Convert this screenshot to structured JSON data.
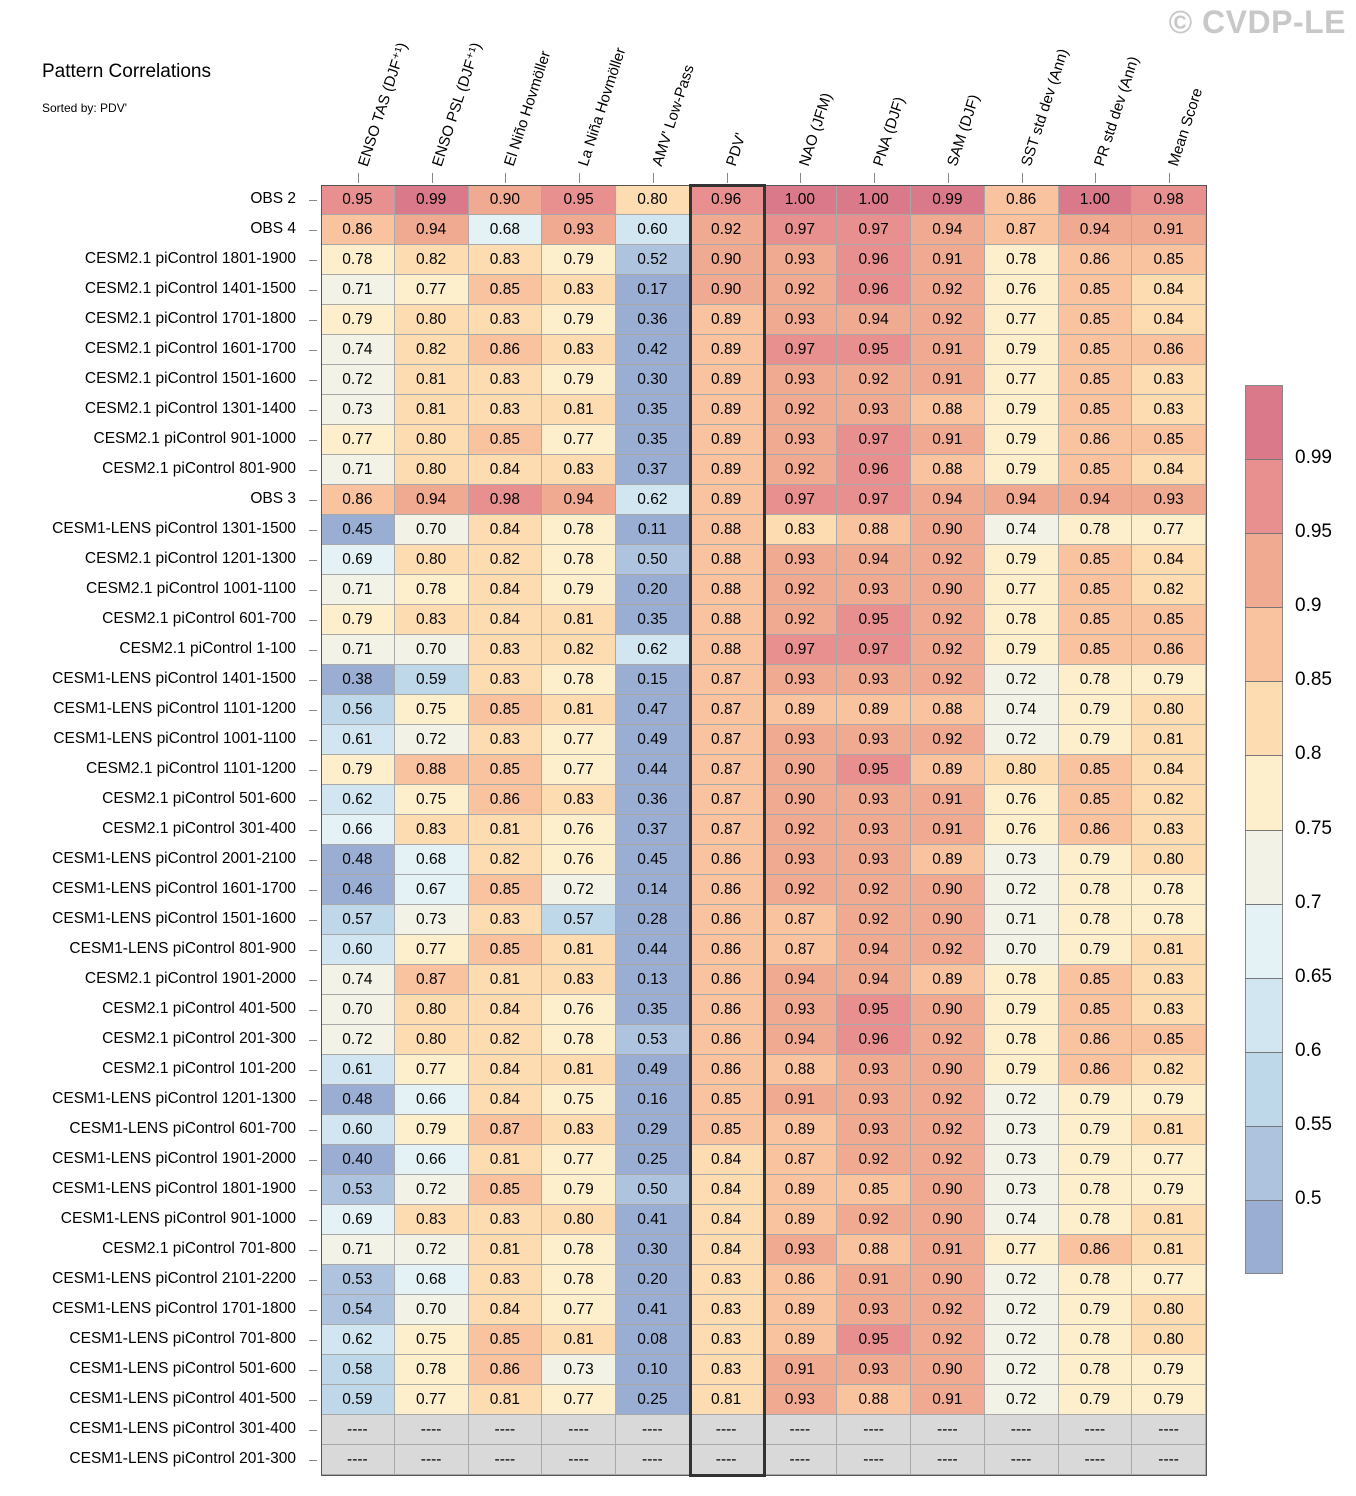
{
  "title": "Pattern Correlations",
  "subtitle": "Sorted by: PDV'",
  "watermark": "© CVDP-LE",
  "chart_data": {
    "type": "heatmap",
    "columns": [
      "ENSO TAS (DJF⁺¹)",
      "ENSO PSL (DJF⁺¹)",
      "El Niño Hovmöller",
      "La Niña Hovmöller",
      "AMV' Low-Pass",
      "PDV'",
      "NAO (JFM)",
      "PNA (DJF)",
      "SAM (DJF)",
      "SST std dev (Ann)",
      "PR std dev (Ann)",
      "Mean Score"
    ],
    "highlight_column": "PDV'",
    "rows": [
      {
        "label": "OBS 2",
        "values": [
          0.95,
          0.99,
          0.9,
          0.95,
          0.8,
          0.96,
          1.0,
          1.0,
          0.99,
          0.86,
          1.0,
          0.98
        ]
      },
      {
        "label": "OBS 4",
        "values": [
          0.86,
          0.94,
          0.68,
          0.93,
          0.6,
          0.92,
          0.97,
          0.97,
          0.94,
          0.87,
          0.94,
          0.91
        ]
      },
      {
        "label": "CESM2.1 piControl 1801-1900",
        "values": [
          0.78,
          0.82,
          0.83,
          0.79,
          0.52,
          0.9,
          0.93,
          0.96,
          0.91,
          0.78,
          0.86,
          0.85
        ]
      },
      {
        "label": "CESM2.1 piControl 1401-1500",
        "values": [
          0.71,
          0.77,
          0.85,
          0.83,
          0.17,
          0.9,
          0.92,
          0.96,
          0.92,
          0.76,
          0.85,
          0.84
        ]
      },
      {
        "label": "CESM2.1 piControl 1701-1800",
        "values": [
          0.79,
          0.8,
          0.83,
          0.79,
          0.36,
          0.89,
          0.93,
          0.94,
          0.92,
          0.77,
          0.85,
          0.84
        ]
      },
      {
        "label": "CESM2.1 piControl 1601-1700",
        "values": [
          0.74,
          0.82,
          0.86,
          0.83,
          0.42,
          0.89,
          0.97,
          0.95,
          0.91,
          0.79,
          0.85,
          0.86
        ]
      },
      {
        "label": "CESM2.1 piControl 1501-1600",
        "values": [
          0.72,
          0.81,
          0.83,
          0.79,
          0.3,
          0.89,
          0.93,
          0.92,
          0.91,
          0.77,
          0.85,
          0.83
        ]
      },
      {
        "label": "CESM2.1 piControl 1301-1400",
        "values": [
          0.73,
          0.81,
          0.83,
          0.81,
          0.35,
          0.89,
          0.92,
          0.93,
          0.88,
          0.79,
          0.85,
          0.83
        ]
      },
      {
        "label": "CESM2.1 piControl 901-1000",
        "values": [
          0.77,
          0.8,
          0.85,
          0.77,
          0.35,
          0.89,
          0.93,
          0.97,
          0.91,
          0.79,
          0.86,
          0.85
        ]
      },
      {
        "label": "CESM2.1 piControl 801-900",
        "values": [
          0.71,
          0.8,
          0.84,
          0.83,
          0.37,
          0.89,
          0.92,
          0.96,
          0.88,
          0.79,
          0.85,
          0.84
        ]
      },
      {
        "label": "OBS 3",
        "values": [
          0.86,
          0.94,
          0.98,
          0.94,
          0.62,
          0.89,
          0.97,
          0.97,
          0.94,
          0.94,
          0.94,
          0.93
        ]
      },
      {
        "label": "CESM1-LENS piControl 1301-1500",
        "values": [
          0.45,
          0.7,
          0.84,
          0.78,
          0.11,
          0.88,
          0.83,
          0.88,
          0.9,
          0.74,
          0.78,
          0.77
        ]
      },
      {
        "label": "CESM2.1 piControl 1201-1300",
        "values": [
          0.69,
          0.8,
          0.82,
          0.78,
          0.5,
          0.88,
          0.93,
          0.94,
          0.92,
          0.79,
          0.85,
          0.84
        ]
      },
      {
        "label": "CESM2.1 piControl 1001-1100",
        "values": [
          0.71,
          0.78,
          0.84,
          0.79,
          0.2,
          0.88,
          0.92,
          0.93,
          0.9,
          0.77,
          0.85,
          0.82
        ]
      },
      {
        "label": "CESM2.1 piControl 601-700",
        "values": [
          0.79,
          0.83,
          0.84,
          0.81,
          0.35,
          0.88,
          0.92,
          0.95,
          0.92,
          0.78,
          0.85,
          0.85
        ]
      },
      {
        "label": "CESM2.1 piControl 1-100",
        "values": [
          0.71,
          0.7,
          0.83,
          0.82,
          0.62,
          0.88,
          0.97,
          0.97,
          0.92,
          0.79,
          0.85,
          0.86
        ]
      },
      {
        "label": "CESM1-LENS piControl 1401-1500",
        "values": [
          0.38,
          0.59,
          0.83,
          0.78,
          0.15,
          0.87,
          0.93,
          0.93,
          0.92,
          0.72,
          0.78,
          0.79
        ]
      },
      {
        "label": "CESM1-LENS piControl 1101-1200",
        "values": [
          0.56,
          0.75,
          0.85,
          0.81,
          0.47,
          0.87,
          0.89,
          0.89,
          0.88,
          0.74,
          0.79,
          0.8
        ]
      },
      {
        "label": "CESM1-LENS piControl 1001-1100",
        "values": [
          0.61,
          0.72,
          0.83,
          0.77,
          0.49,
          0.87,
          0.93,
          0.93,
          0.92,
          0.72,
          0.79,
          0.81
        ]
      },
      {
        "label": "CESM2.1 piControl 1101-1200",
        "values": [
          0.79,
          0.88,
          0.85,
          0.77,
          0.44,
          0.87,
          0.9,
          0.95,
          0.89,
          0.8,
          0.85,
          0.84
        ]
      },
      {
        "label": "CESM2.1 piControl 501-600",
        "values": [
          0.62,
          0.75,
          0.86,
          0.83,
          0.36,
          0.87,
          0.9,
          0.93,
          0.91,
          0.76,
          0.85,
          0.82
        ]
      },
      {
        "label": "CESM2.1 piControl 301-400",
        "values": [
          0.66,
          0.83,
          0.81,
          0.76,
          0.37,
          0.87,
          0.92,
          0.93,
          0.91,
          0.76,
          0.86,
          0.83
        ]
      },
      {
        "label": "CESM1-LENS piControl 2001-2100",
        "values": [
          0.48,
          0.68,
          0.82,
          0.76,
          0.45,
          0.86,
          0.93,
          0.93,
          0.89,
          0.73,
          0.79,
          0.8
        ]
      },
      {
        "label": "CESM1-LENS piControl 1601-1700",
        "values": [
          0.46,
          0.67,
          0.85,
          0.72,
          0.14,
          0.86,
          0.92,
          0.92,
          0.9,
          0.72,
          0.78,
          0.78
        ]
      },
      {
        "label": "CESM1-LENS piControl 1501-1600",
        "values": [
          0.57,
          0.73,
          0.83,
          0.57,
          0.28,
          0.86,
          0.87,
          0.92,
          0.9,
          0.71,
          0.78,
          0.78
        ]
      },
      {
        "label": "CESM1-LENS piControl 801-900",
        "values": [
          0.6,
          0.77,
          0.85,
          0.81,
          0.44,
          0.86,
          0.87,
          0.94,
          0.92,
          0.7,
          0.79,
          0.81
        ]
      },
      {
        "label": "CESM2.1 piControl 1901-2000",
        "values": [
          0.74,
          0.87,
          0.81,
          0.83,
          0.13,
          0.86,
          0.94,
          0.94,
          0.89,
          0.78,
          0.85,
          0.83
        ]
      },
      {
        "label": "CESM2.1 piControl 401-500",
        "values": [
          0.7,
          0.8,
          0.84,
          0.76,
          0.35,
          0.86,
          0.93,
          0.95,
          0.9,
          0.79,
          0.85,
          0.83
        ]
      },
      {
        "label": "CESM2.1 piControl 201-300",
        "values": [
          0.72,
          0.8,
          0.82,
          0.78,
          0.53,
          0.86,
          0.94,
          0.96,
          0.92,
          0.78,
          0.86,
          0.85
        ]
      },
      {
        "label": "CESM2.1 piControl 101-200",
        "values": [
          0.61,
          0.77,
          0.84,
          0.81,
          0.49,
          0.86,
          0.88,
          0.93,
          0.9,
          0.79,
          0.86,
          0.82
        ]
      },
      {
        "label": "CESM1-LENS piControl 1201-1300",
        "values": [
          0.48,
          0.66,
          0.84,
          0.75,
          0.16,
          0.85,
          0.91,
          0.93,
          0.92,
          0.72,
          0.79,
          0.79
        ]
      },
      {
        "label": "CESM1-LENS piControl 601-700",
        "values": [
          0.6,
          0.79,
          0.87,
          0.83,
          0.29,
          0.85,
          0.89,
          0.93,
          0.92,
          0.73,
          0.79,
          0.81
        ]
      },
      {
        "label": "CESM1-LENS piControl 1901-2000",
        "values": [
          0.4,
          0.66,
          0.81,
          0.77,
          0.25,
          0.84,
          0.87,
          0.92,
          0.92,
          0.73,
          0.79,
          0.77
        ]
      },
      {
        "label": "CESM1-LENS piControl 1801-1900",
        "values": [
          0.53,
          0.72,
          0.85,
          0.79,
          0.5,
          0.84,
          0.89,
          0.85,
          0.9,
          0.73,
          0.78,
          0.79
        ]
      },
      {
        "label": "CESM1-LENS piControl 901-1000",
        "values": [
          0.69,
          0.83,
          0.83,
          0.8,
          0.41,
          0.84,
          0.89,
          0.92,
          0.9,
          0.74,
          0.78,
          0.81
        ]
      },
      {
        "label": "CESM2.1 piControl 701-800",
        "values": [
          0.71,
          0.72,
          0.81,
          0.78,
          0.3,
          0.84,
          0.93,
          0.88,
          0.91,
          0.77,
          0.86,
          0.81
        ]
      },
      {
        "label": "CESM1-LENS piControl 2101-2200",
        "values": [
          0.53,
          0.68,
          0.83,
          0.78,
          0.2,
          0.83,
          0.86,
          0.91,
          0.9,
          0.72,
          0.78,
          0.77
        ]
      },
      {
        "label": "CESM1-LENS piControl 1701-1800",
        "values": [
          0.54,
          0.7,
          0.84,
          0.77,
          0.41,
          0.83,
          0.89,
          0.93,
          0.92,
          0.72,
          0.79,
          0.8
        ]
      },
      {
        "label": "CESM1-LENS piControl 701-800",
        "values": [
          0.62,
          0.75,
          0.85,
          0.81,
          0.08,
          0.83,
          0.89,
          0.95,
          0.92,
          0.72,
          0.78,
          0.8
        ]
      },
      {
        "label": "CESM1-LENS piControl 501-600",
        "values": [
          0.58,
          0.78,
          0.86,
          0.73,
          0.1,
          0.83,
          0.91,
          0.93,
          0.9,
          0.72,
          0.78,
          0.79
        ]
      },
      {
        "label": "CESM1-LENS piControl 401-500",
        "values": [
          0.59,
          0.77,
          0.81,
          0.77,
          0.25,
          0.81,
          0.93,
          0.88,
          0.91,
          0.72,
          0.79,
          0.79
        ]
      },
      {
        "label": "CESM1-LENS piControl 301-400",
        "values": [
          null,
          null,
          null,
          null,
          null,
          null,
          null,
          null,
          null,
          null,
          null,
          null
        ]
      },
      {
        "label": "CESM1-LENS piControl 201-300",
        "values": [
          null,
          null,
          null,
          null,
          null,
          null,
          null,
          null,
          null,
          null,
          null,
          null
        ]
      }
    ],
    "missing_text": "----",
    "missing_color": "#d9d9d9",
    "colorbar": {
      "levels": [
        0.5,
        0.55,
        0.6,
        0.65,
        0.7,
        0.75,
        0.8,
        0.85,
        0.9,
        0.95,
        0.99
      ],
      "labels": [
        "0.5",
        "0.55",
        "0.6",
        "0.65",
        "0.7",
        "0.75",
        "0.8",
        "0.85",
        "0.9",
        "0.95",
        "0.99"
      ],
      "colors": [
        "#9aaed4",
        "#aec4de",
        "#bed7e9",
        "#d1e6f0",
        "#e4f1f5",
        "#f3f2e6",
        "#fdefcc",
        "#fcdcb0",
        "#f9c3a0",
        "#f1aa92",
        "#e89090",
        "#d9798a"
      ]
    }
  }
}
